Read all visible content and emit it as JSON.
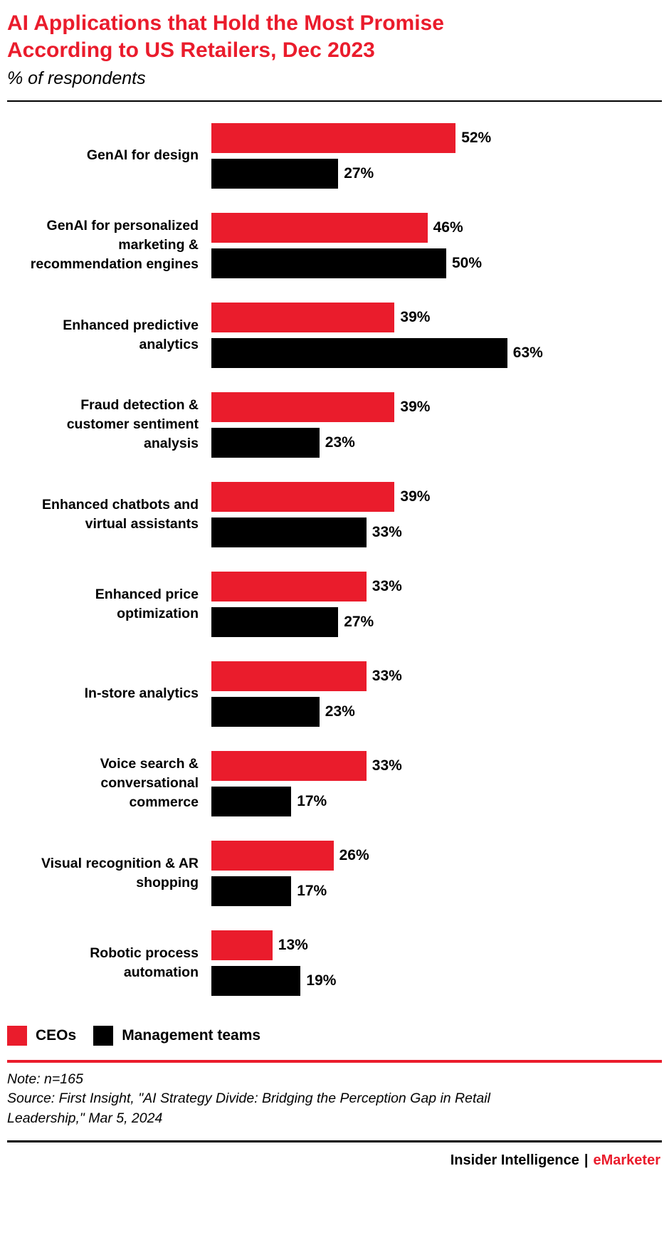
{
  "header": {
    "title_lines": [
      "AI Applications that Hold the Most Promise",
      "According to US Retailers, Dec 2023"
    ],
    "subtitle": "% of respondents"
  },
  "chart_data": {
    "type": "bar",
    "orientation": "horizontal",
    "title": "AI Applications that Hold the Most Promise According to US Retailers, Dec 2023",
    "subtitle": "% of respondents",
    "value_suffix": "%",
    "xlim": [
      0,
      70
    ],
    "grid": false,
    "legend_position": "bottom",
    "categories": [
      "GenAI for design",
      "GenAI for personalized marketing & recommendation engines",
      "Enhanced predictive analytics",
      "Fraud detection & customer sentiment analysis",
      "Enhanced chatbots and virtual assistants",
      "Enhanced price optimization",
      "In-store analytics",
      "Voice search & conversational commerce",
      "Visual recognition & AR shopping",
      "Robotic process automation"
    ],
    "series": [
      {
        "name": "CEOs",
        "color": "#ea1c2c",
        "values": [
          52,
          46,
          39,
          39,
          39,
          33,
          33,
          33,
          26,
          13
        ]
      },
      {
        "name": "Management teams",
        "color": "#000000",
        "values": [
          27,
          50,
          63,
          23,
          33,
          27,
          23,
          17,
          17,
          19
        ]
      }
    ]
  },
  "legend": {
    "items": [
      {
        "label": "CEOs",
        "color": "#ea1c2c"
      },
      {
        "label": "Management teams",
        "color": "#000000"
      }
    ]
  },
  "footnotes": {
    "note": "Note: n=165",
    "source": "Source: First Insight, \"AI Strategy Divide: Bridging the Perception Gap in Retail Leadership,\" Mar 5, 2024"
  },
  "footer": {
    "brand_left": "Insider Intelligence",
    "separator": "|",
    "brand_right": "eMarketer"
  },
  "colors": {
    "accent_red": "#ea1c2c",
    "bar_black": "#000000"
  }
}
